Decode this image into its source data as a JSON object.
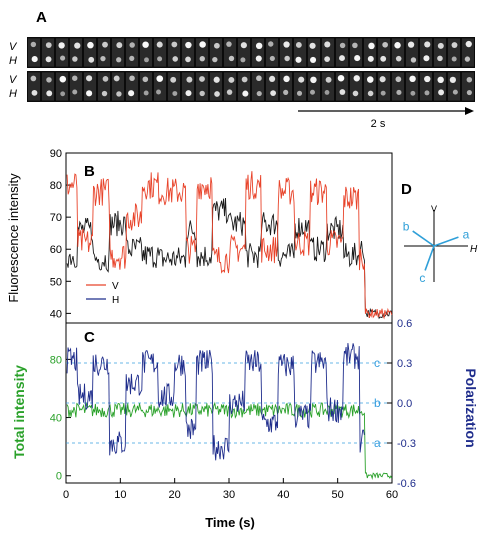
{
  "panel_labels": {
    "a": "A",
    "b": "B",
    "c": "C",
    "d": "D"
  },
  "film_strip": {
    "row_labels": [
      "V",
      "H",
      "V",
      "H"
    ],
    "frames_per_row": 32,
    "scale_label": "2 s"
  },
  "orientation_diagram": {
    "vertical_label": "V",
    "horizontal_label": "H",
    "vectors": [
      {
        "name": "a",
        "angle_deg": 20
      },
      {
        "name": "b",
        "angle_deg": 145
      },
      {
        "name": "c",
        "angle_deg": 250
      }
    ]
  },
  "colors": {
    "v_trace": "#e8432a",
    "h_trace": "#1a1a1a",
    "polarization": "#1f2d8c",
    "total": "#2aa12a",
    "dashed": "#3aa0e0",
    "diagram_vector": "#2f9fd8"
  },
  "chart_data": [
    {
      "type": "line",
      "panel": "B",
      "ylabel": "Fluorescence intensity",
      "ylim": [
        37,
        90
      ],
      "yticks": [
        40,
        50,
        60,
        70,
        80,
        90
      ],
      "xlim": [
        0,
        60
      ],
      "legend": {
        "placement": "bottom-left",
        "entries": [
          "V",
          "H"
        ]
      },
      "segments": [
        {
          "t": [
            0,
            2
          ],
          "V": 80,
          "H": 58
        },
        {
          "t": [
            2,
            5
          ],
          "V": 62,
          "H": 66
        },
        {
          "t": [
            5,
            8
          ],
          "V": 78,
          "H": 57
        },
        {
          "t": [
            8,
            11
          ],
          "V": 58,
          "H": 68
        },
        {
          "t": [
            11,
            14
          ],
          "V": 70,
          "H": 60
        },
        {
          "t": [
            14,
            17
          ],
          "V": 80,
          "H": 58
        },
        {
          "t": [
            17,
            22
          ],
          "V": 78,
          "H": 57
        },
        {
          "t": [
            22,
            24
          ],
          "V": 60,
          "H": 66
        },
        {
          "t": [
            24,
            27
          ],
          "V": 80,
          "H": 58
        },
        {
          "t": [
            27,
            30
          ],
          "V": 57,
          "H": 72
        },
        {
          "t": [
            30,
            33
          ],
          "V": 60,
          "H": 68
        },
        {
          "t": [
            33,
            36
          ],
          "V": 80,
          "H": 58
        },
        {
          "t": [
            36,
            39
          ],
          "V": 60,
          "H": 68
        },
        {
          "t": [
            39,
            42
          ],
          "V": 78,
          "H": 58
        },
        {
          "t": [
            42,
            45
          ],
          "V": 62,
          "H": 67
        },
        {
          "t": [
            45,
            48
          ],
          "V": 78,
          "H": 60
        },
        {
          "t": [
            48,
            51
          ],
          "V": 62,
          "H": 66
        },
        {
          "t": [
            51,
            54
          ],
          "V": 76,
          "H": 58
        },
        {
          "t": [
            54,
            55
          ],
          "V": 58,
          "H": 60
        },
        {
          "t": [
            55,
            61
          ],
          "V": 40,
          "H": 40
        }
      ]
    },
    {
      "type": "line",
      "panel": "C",
      "xlabel": "Time (s)",
      "xlim": [
        0,
        60
      ],
      "xticks": [
        0,
        10,
        20,
        30,
        40,
        50,
        60
      ],
      "ylabel_left": "Total intensity",
      "ylim_left": [
        -5,
        105
      ],
      "yticks_left": [
        0,
        40,
        80
      ],
      "ylabel_right": "Polarization",
      "ylim_right": [
        -0.6,
        0.6
      ],
      "yticks_right": [
        -0.6,
        -0.3,
        0.0,
        0.3,
        0.6
      ],
      "yticklabels_right": [
        "-0.6",
        "-0.3",
        "0.0",
        "0.3",
        "0.6"
      ],
      "reference_lines": [
        {
          "label": "c",
          "polarization": 0.3
        },
        {
          "label": "b",
          "polarization": 0.0
        },
        {
          "label": "a",
          "polarization": -0.3
        }
      ],
      "total_intensity": {
        "before_t": 55,
        "level": 45,
        "after_level": 0
      },
      "polarization_states": [
        {
          "t": [
            0,
            2
          ],
          "p": 0.32
        },
        {
          "t": [
            2,
            5
          ],
          "p": 0.05
        },
        {
          "t": [
            5,
            8
          ],
          "p": 0.3
        },
        {
          "t": [
            8,
            11
          ],
          "p": -0.3
        },
        {
          "t": [
            11,
            14
          ],
          "p": 0.15
        },
        {
          "t": [
            14,
            17
          ],
          "p": 0.3
        },
        {
          "t": [
            17,
            20
          ],
          "p": 0.05
        },
        {
          "t": [
            20,
            22
          ],
          "p": 0.3
        },
        {
          "t": [
            22,
            24
          ],
          "p": -0.2
        },
        {
          "t": [
            24,
            27
          ],
          "p": 0.3
        },
        {
          "t": [
            27,
            30
          ],
          "p": -0.33
        },
        {
          "t": [
            30,
            33
          ],
          "p": 0.0
        },
        {
          "t": [
            33,
            36
          ],
          "p": 0.3
        },
        {
          "t": [
            36,
            39
          ],
          "p": -0.15
        },
        {
          "t": [
            39,
            42
          ],
          "p": 0.28
        },
        {
          "t": [
            42,
            45
          ],
          "p": -0.1
        },
        {
          "t": [
            45,
            48
          ],
          "p": 0.3
        },
        {
          "t": [
            48,
            51
          ],
          "p": -0.05
        },
        {
          "t": [
            51,
            54
          ],
          "p": 0.35
        },
        {
          "t": [
            54,
            55
          ],
          "p": -0.3
        }
      ]
    }
  ]
}
